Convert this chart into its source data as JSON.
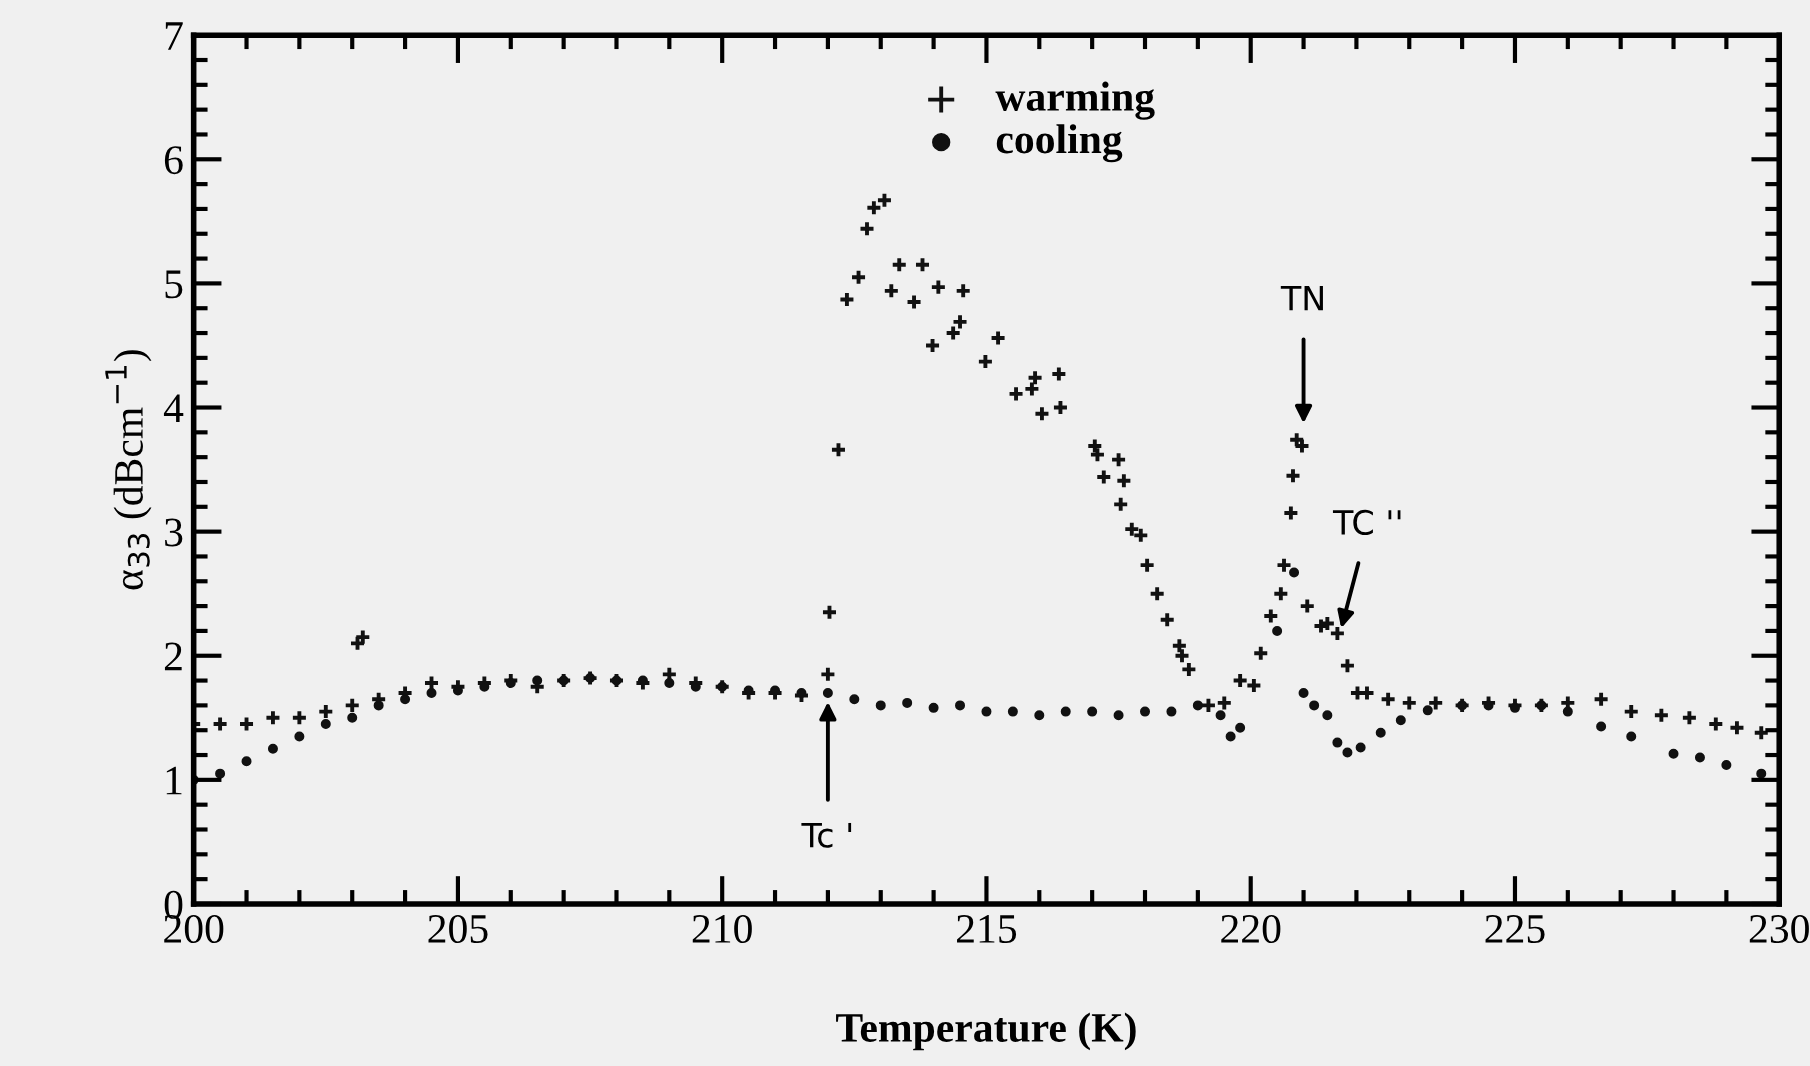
{
  "chart_data": {
    "type": "scatter",
    "xlabel": "Temperature (K)",
    "ylabel": "α$_{33}$ (dBcm$^{−1}$)",
    "xlim": [
      200,
      230
    ],
    "ylim": [
      0,
      7
    ],
    "xticks": [
      200,
      205,
      210,
      215,
      220,
      225,
      230
    ],
    "yticks": [
      0,
      1,
      2,
      3,
      4,
      5,
      6,
      7
    ],
    "grid": false,
    "legend": "top right",
    "annotations": [
      {
        "text": "Tc '",
        "x": 212,
        "y": 1.65
      },
      {
        "text": "TN",
        "x": 221,
        "y": 3.85
      },
      {
        "text": "TC ''",
        "x": 221.7,
        "y": 2.2
      }
    ],
    "series": [
      {
        "name": "warming",
        "color": "#111111",
        "marker": "cross",
        "x": [
          200,
          200.5,
          201,
          201.5,
          202,
          202.5,
          203,
          203.1,
          203.2,
          203.5,
          204,
          204.5,
          205,
          205.5,
          206,
          206.5,
          207,
          207.5,
          208,
          208.5,
          209,
          209.5,
          210,
          210.5,
          211,
          211.5,
          212,
          212.03,
          212.2,
          212.36,
          212.58,
          212.74,
          212.87,
          213.07,
          213.2,
          213.35,
          213.63,
          213.79,
          213.98,
          214.09,
          214.37,
          214.5,
          214.56,
          214.98,
          215.22,
          215.56,
          215.86,
          215.92,
          216.05,
          216.37,
          216.4,
          217.05,
          217.1,
          217.22,
          217.5,
          217.6,
          217.54,
          217.75,
          217.92,
          218.04,
          218.23,
          218.42,
          218.65,
          218.7,
          218.83,
          219.2,
          219.5,
          219.8,
          220.06,
          220.19,
          220.38,
          220.57,
          220.63,
          220.76,
          220.8,
          220.87,
          220.97,
          221.07,
          221.33,
          221.45,
          221.64,
          221.83,
          222.02,
          222.2,
          222.6,
          223,
          223.5,
          224,
          224.5,
          225,
          225.5,
          226,
          226.63,
          227.2,
          227.77,
          228.3,
          228.8,
          229.2,
          229.66
        ],
        "values": [
          1.45,
          1.45,
          1.45,
          1.5,
          1.5,
          1.55,
          1.6,
          2.1,
          2.15,
          1.65,
          1.7,
          1.78,
          1.75,
          1.78,
          1.8,
          1.75,
          1.8,
          1.82,
          1.8,
          1.78,
          1.85,
          1.78,
          1.75,
          1.7,
          1.7,
          1.68,
          1.85,
          2.35,
          3.66,
          4.87,
          5.05,
          5.44,
          5.61,
          5.67,
          4.94,
          5.15,
          4.85,
          5.15,
          4.5,
          4.97,
          4.6,
          4.69,
          4.94,
          4.37,
          4.56,
          4.11,
          4.15,
          4.24,
          3.95,
          4.27,
          4.0,
          3.69,
          3.62,
          3.44,
          3.58,
          3.41,
          3.22,
          3.02,
          2.97,
          2.73,
          2.5,
          2.29,
          2.08,
          2.0,
          1.89,
          1.6,
          1.62,
          1.8,
          1.76,
          2.02,
          2.32,
          2.5,
          2.73,
          3.15,
          3.45,
          3.74,
          3.69,
          2.4,
          2.24,
          2.26,
          2.18,
          1.92,
          1.7,
          1.7,
          1.65,
          1.62,
          1.62,
          1.6,
          1.62,
          1.6,
          1.6,
          1.62,
          1.65,
          1.55,
          1.52,
          1.5,
          1.45,
          1.42,
          1.38
        ]
      },
      {
        "name": "cooling",
        "color": "#111111",
        "marker": "circle",
        "x": [
          200,
          200.5,
          201,
          201.5,
          202,
          202.5,
          203,
          203.5,
          204,
          204.5,
          205,
          205.5,
          206,
          206.5,
          207,
          207.5,
          208,
          208.5,
          209,
          209.5,
          210,
          210.5,
          211,
          211.5,
          212,
          212.5,
          213,
          213.5,
          214,
          214.5,
          215,
          215.5,
          216,
          216.5,
          217,
          217.5,
          218,
          218.5,
          219,
          219.43,
          219.62,
          219.8,
          220.5,
          220.82,
          221.0,
          221.2,
          221.45,
          221.64,
          221.83,
          222.08,
          222.46,
          222.84,
          223.35,
          224,
          224.5,
          225,
          225.5,
          226,
          226.63,
          227.2,
          228.0,
          228.5,
          229,
          229.66
        ],
        "values": [
          1.0,
          1.05,
          1.15,
          1.25,
          1.35,
          1.45,
          1.5,
          1.6,
          1.65,
          1.7,
          1.72,
          1.75,
          1.78,
          1.8,
          1.8,
          1.82,
          1.8,
          1.8,
          1.78,
          1.75,
          1.75,
          1.72,
          1.72,
          1.7,
          1.7,
          1.65,
          1.6,
          1.62,
          1.58,
          1.6,
          1.55,
          1.55,
          1.52,
          1.55,
          1.55,
          1.52,
          1.55,
          1.55,
          1.6,
          1.52,
          1.35,
          1.42,
          2.2,
          2.67,
          1.7,
          1.6,
          1.52,
          1.3,
          1.22,
          1.26,
          1.38,
          1.48,
          1.56,
          1.6,
          1.6,
          1.58,
          1.6,
          1.55,
          1.43,
          1.35,
          1.21,
          1.18,
          1.12,
          1.05
        ]
      }
    ]
  }
}
